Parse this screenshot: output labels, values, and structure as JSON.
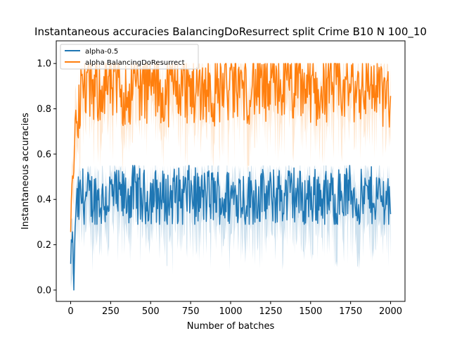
{
  "chart_data": {
    "type": "line",
    "title": "Instantaneous accuracies BalancingDoResurrect split Crime B10 N 100_10",
    "xlabel": "Number of batches",
    "ylabel": "Instantaneous accuracies",
    "xlim": [
      -90,
      2090
    ],
    "ylim": [
      -0.05,
      1.1
    ],
    "x_ticks": [
      0,
      250,
      500,
      750,
      1000,
      1250,
      1500,
      1750,
      2000
    ],
    "x_tick_labels": [
      "0",
      "250",
      "500",
      "750",
      "1000",
      "1250",
      "1500",
      "1750",
      "2000"
    ],
    "y_ticks": [
      0.0,
      0.2,
      0.4,
      0.6,
      0.8,
      1.0
    ],
    "y_tick_labels": [
      "0.0",
      "0.2",
      "0.4",
      "0.6",
      "0.8",
      "1.0"
    ],
    "grid": false,
    "legend_position": "top-left",
    "x_max": 2000,
    "series": [
      {
        "name": "alpha-0.5",
        "color": "#1f77b4",
        "band_color": "#a6c8e0",
        "x": [
          0,
          10,
          20,
          30,
          50,
          75,
          100,
          150,
          200,
          250,
          300,
          350,
          400,
          450,
          500,
          550,
          600,
          650,
          700,
          750,
          800,
          850,
          900,
          950,
          1000,
          1050,
          1100,
          1150,
          1200,
          1250,
          1300,
          1350,
          1400,
          1450,
          1500,
          1550,
          1600,
          1650,
          1700,
          1750,
          1800,
          1850,
          1900,
          1950,
          2000
        ],
        "y": [
          0.1,
          0.28,
          0.0,
          0.35,
          0.38,
          0.42,
          0.4,
          0.41,
          0.39,
          0.42,
          0.4,
          0.41,
          0.43,
          0.4,
          0.42,
          0.41,
          0.4,
          0.42,
          0.41,
          0.43,
          0.4,
          0.41,
          0.42,
          0.4,
          0.41,
          0.43,
          0.4,
          0.42,
          0.41,
          0.4,
          0.42,
          0.41,
          0.43,
          0.4,
          0.41,
          0.42,
          0.4,
          0.41,
          0.42,
          0.43,
          0.4,
          0.41,
          0.42,
          0.4,
          0.42
        ],
        "band_low": 0.07,
        "band_high": 0.55,
        "range_low": 0.29,
        "range_high": 0.55
      },
      {
        "name": "alpha BalancingDoResurrect",
        "color": "#ff7f0e",
        "band_color": "#ffd3aa",
        "x": [
          0,
          10,
          20,
          30,
          50,
          75,
          100,
          150,
          200,
          250,
          300,
          350,
          400,
          450,
          500,
          550,
          600,
          650,
          700,
          750,
          800,
          850,
          900,
          950,
          1000,
          1050,
          1100,
          1150,
          1200,
          1250,
          1300,
          1350,
          1400,
          1450,
          1500,
          1550,
          1600,
          1650,
          1700,
          1750,
          1800,
          1850,
          1900,
          1950,
          2000
        ],
        "y": [
          0.25,
          0.5,
          0.55,
          0.75,
          0.82,
          0.88,
          0.9,
          0.87,
          0.91,
          0.89,
          0.9,
          0.86,
          0.92,
          0.88,
          0.9,
          0.89,
          0.87,
          0.91,
          0.9,
          0.88,
          0.89,
          0.9,
          0.86,
          0.91,
          0.89,
          0.9,
          0.88,
          0.91,
          0.89,
          0.87,
          0.9,
          0.91,
          0.88,
          0.9,
          0.89,
          0.86,
          0.9,
          0.91,
          0.88,
          0.9,
          0.89,
          0.91,
          0.9,
          0.88,
          0.8
        ],
        "band_low": 0.5,
        "band_high": 1.0,
        "range_low": 0.55,
        "range_high": 1.0
      }
    ]
  }
}
